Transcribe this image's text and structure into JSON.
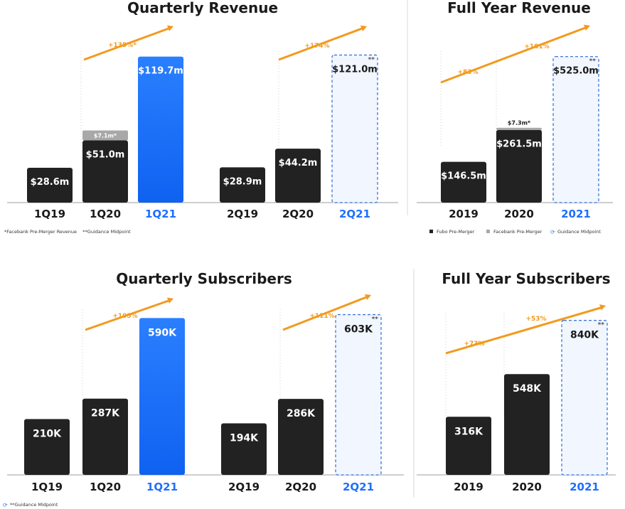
{
  "colors": {
    "dark": "#222222",
    "blue": "#1e73ff",
    "blue_text": "#1e6fff",
    "facebank": "#a8a8a8",
    "guidance_fill": "#f1f6ff",
    "guidance_stroke": "#3d78d8",
    "arrow": "#f29a1f"
  },
  "chart_data": [
    {
      "type": "bar",
      "title": "Quarterly Revenue",
      "categories": [
        "1Q19",
        "1Q20",
        "1Q21",
        "2Q19",
        "2Q20",
        "2Q21"
      ],
      "series": [
        {
          "name": "Fubo Pre-Merger",
          "values": [
            28.6,
            51.0,
            119.7,
            28.9,
            44.2,
            121.0
          ]
        },
        {
          "name": "Facebank Pre-Merger",
          "values": [
            0,
            7.1,
            0,
            0,
            0,
            0
          ]
        }
      ],
      "labels": [
        "$28.6m",
        "$51.0m",
        "$119.7m",
        "$28.9m",
        "$44.2m",
        "$121.0m"
      ],
      "stack_labels": [
        "",
        "$7.1m*",
        "",
        "",
        "",
        ""
      ],
      "styles": [
        "dark",
        "dark",
        "blue",
        "dark",
        "dark",
        "guidance"
      ],
      "growth": [
        {
          "text": "+135%*"
        },
        {
          "text": "+174%"
        }
      ],
      "ylim": [
        0,
        130
      ]
    },
    {
      "type": "bar",
      "title": "Full Year Revenue",
      "categories": [
        "2019",
        "2020",
        "2021"
      ],
      "series": [
        {
          "name": "Fubo Pre-Merger",
          "values": [
            146.5,
            261.5,
            525.0
          ]
        },
        {
          "name": "Facebank Pre-Merger",
          "values": [
            0,
            7.3,
            0
          ]
        }
      ],
      "labels": [
        "$146.5m",
        "$261.5m",
        "$525.0m"
      ],
      "stack_labels": [
        "",
        "$7.3m*",
        ""
      ],
      "styles": [
        "dark",
        "dark",
        "guidance"
      ],
      "growth": [
        {
          "text": "+83%"
        },
        {
          "text": "+101%"
        }
      ],
      "ylim": [
        0,
        570
      ]
    },
    {
      "type": "bar",
      "title": "Quarterly Subscribers",
      "categories": [
        "1Q19",
        "1Q20",
        "1Q21",
        "2Q19",
        "2Q20",
        "2Q21"
      ],
      "series": [
        {
          "values": [
            210,
            287,
            590,
            194,
            286,
            603
          ]
        }
      ],
      "labels": [
        "210K",
        "287K",
        "590K",
        "194K",
        "286K",
        "603K"
      ],
      "styles": [
        "dark",
        "dark",
        "blue",
        "dark",
        "dark",
        "guidance"
      ],
      "growth": [
        {
          "text": "+105%"
        },
        {
          "text": "+111%"
        }
      ],
      "ylim": [
        0,
        650
      ]
    },
    {
      "type": "bar",
      "title": "Full Year Subscribers",
      "categories": [
        "2019",
        "2020",
        "2021"
      ],
      "series": [
        {
          "values": [
            316,
            548,
            840
          ]
        }
      ],
      "labels": [
        "316K",
        "548K",
        "840K"
      ],
      "styles": [
        "dark",
        "dark",
        "guidance"
      ],
      "growth": [
        {
          "text": "+73%"
        },
        {
          "text": "+53%"
        }
      ],
      "ylim": [
        0,
        920
      ]
    }
  ],
  "guidance_marker": "**",
  "footnotes": {
    "quarterly_revenue": "*Facebank Pre-Merger Revenue    **Guidance Midpoint",
    "subscribers": "**Guidance Midpoint"
  },
  "legend": {
    "fubo": "Fubo Pre-Merger",
    "facebank": "Facebank Pre-Merger",
    "guidance": "Guidance Midpoint"
  }
}
